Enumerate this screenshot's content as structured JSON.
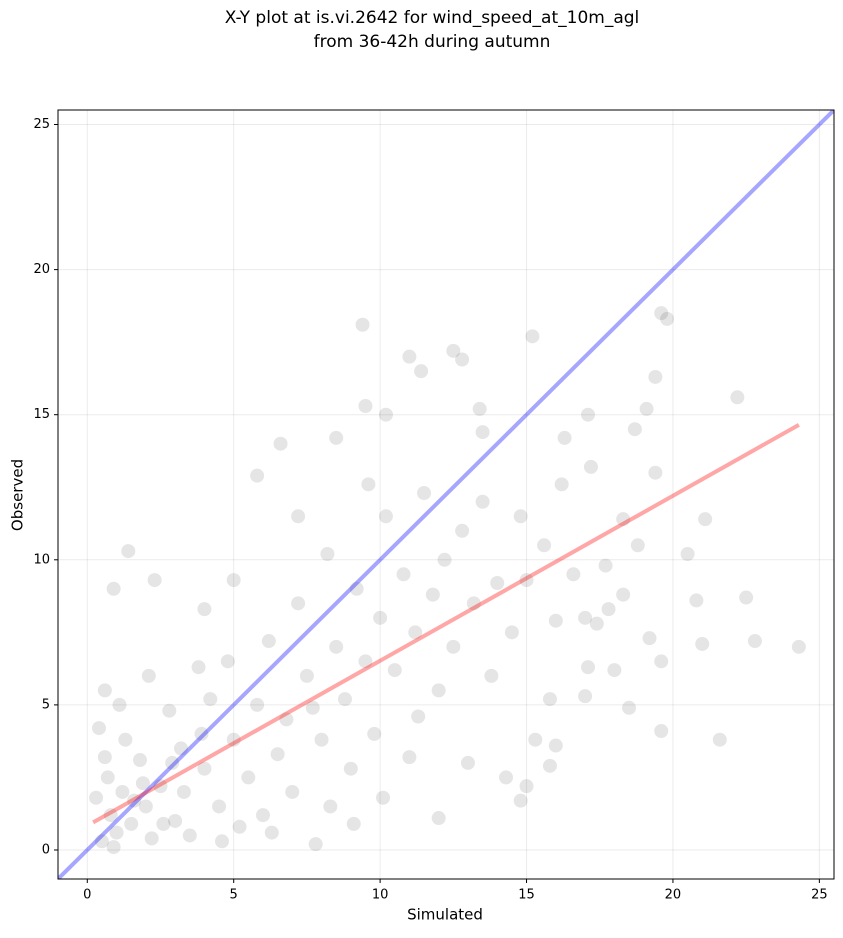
{
  "chart_data": {
    "type": "scatter",
    "title": [
      "X-Y plot at is.vi.2642 for wind_speed_at_10m_agl",
      "from 36-42h during autumn"
    ],
    "x_label": "Simulated",
    "y_label": "Observed",
    "xlim": [
      -1,
      25.5
    ],
    "ylim": [
      -1,
      25.5
    ],
    "xticks": [
      0,
      5,
      10,
      15,
      20,
      25
    ],
    "yticks": [
      0,
      5,
      10,
      15,
      20,
      25
    ],
    "grid": true,
    "color": "#000000",
    "x": [
      0.5,
      0.8,
      1.0,
      1.2,
      1.5,
      0.7,
      2.0,
      2.2,
      1.8,
      0.4,
      0.6,
      1.1,
      2.5,
      3.0,
      3.2,
      2.8,
      3.5,
      4.0,
      4.2,
      3.8,
      4.5,
      5.0,
      5.2,
      4.8,
      5.5,
      5.8,
      6.0,
      6.2,
      6.5,
      6.8,
      7.0,
      7.2,
      7.5,
      7.8,
      8.0,
      8.2,
      8.5,
      8.8,
      9.0,
      9.2,
      9.5,
      9.8,
      10.0,
      10.2,
      10.5,
      10.8,
      11.0,
      11.2,
      11.5,
      11.8,
      12.0,
      12.2,
      12.5,
      12.8,
      13.0,
      13.2,
      13.5,
      13.8,
      14.0,
      14.3,
      14.5,
      14.8,
      15.0,
      15.3,
      15.6,
      15.8,
      16.0,
      16.2,
      16.6,
      17.0,
      17.4,
      17.8,
      18.3,
      18.8,
      19.2,
      1.4,
      9.4,
      15.2,
      19.6,
      19.8,
      22.2,
      24.3,
      21.6,
      19.6,
      18.5,
      16.0,
      15.8,
      15.0,
      14.8,
      12.0,
      6.6,
      5.8,
      11.0,
      12.5,
      12.8,
      19.4,
      22.5,
      22.8,
      20.8,
      20.5,
      21.0,
      19.6,
      18.0,
      17.1,
      17.0,
      17.7,
      17.2,
      16.3,
      17.1,
      18.7,
      19.1,
      18.3,
      21.1,
      19.4,
      2.3,
      0.9,
      4.0,
      5.0,
      11.4,
      13.4,
      9.5,
      10.2,
      7.2,
      8.5,
      13.5,
      9.6,
      0.3,
      0.9,
      1.6,
      2.6,
      3.3,
      1.3,
      2.1,
      3.9,
      4.6,
      0.6,
      1.9,
      2.9,
      8.3,
      10.1,
      6.3,
      11.3,
      7.7,
      9.1
    ],
    "y": [
      0.3,
      1.2,
      0.6,
      2.0,
      0.9,
      2.5,
      1.5,
      0.4,
      3.1,
      4.2,
      5.5,
      5.0,
      2.2,
      1.0,
      3.5,
      4.8,
      0.5,
      2.8,
      5.2,
      6.3,
      1.5,
      3.8,
      0.8,
      6.5,
      2.5,
      5.0,
      1.2,
      7.2,
      3.3,
      4.5,
      2.0,
      8.5,
      6.0,
      0.2,
      3.8,
      10.2,
      7.0,
      5.2,
      2.8,
      9.0,
      6.5,
      4.0,
      8.0,
      11.5,
      6.2,
      9.5,
      3.2,
      7.5,
      12.3,
      8.8,
      5.5,
      10.0,
      7.0,
      11.0,
      3.0,
      8.5,
      12.0,
      6.0,
      9.2,
      2.5,
      7.5,
      11.5,
      9.3,
      3.8,
      10.5,
      5.2,
      7.9,
      12.6,
      9.5,
      8.0,
      7.8,
      8.3,
      8.8,
      10.5,
      7.3,
      10.3,
      18.1,
      17.7,
      18.5,
      18.3,
      15.6,
      7.0,
      3.8,
      4.1,
      4.9,
      3.6,
      2.9,
      2.2,
      1.7,
      1.1,
      14.0,
      12.9,
      17.0,
      17.2,
      16.9,
      16.3,
      8.7,
      7.2,
      8.6,
      10.2,
      7.1,
      6.5,
      6.2,
      6.3,
      5.3,
      9.8,
      13.2,
      14.2,
      15.0,
      14.5,
      15.2,
      11.4,
      11.4,
      13.0,
      9.3,
      9.0,
      8.3,
      9.3,
      16.5,
      15.2,
      15.3,
      15.0,
      11.5,
      14.2,
      14.4,
      12.6,
      1.8,
      0.1,
      1.7,
      0.9,
      2.0,
      3.8,
      6.0,
      4.0,
      0.3,
      3.2,
      2.3,
      3.0,
      1.5,
      1.8,
      0.6,
      4.6,
      4.9,
      0.9
    ],
    "lines": [
      {
        "color": "#0000ff",
        "x": [
          -1,
          25.5
        ],
        "y": [
          -1,
          25.5
        ]
      },
      {
        "color": "#ff0000",
        "x": [
          0.2,
          24.3
        ],
        "y": [
          0.95,
          14.65
        ]
      }
    ]
  }
}
